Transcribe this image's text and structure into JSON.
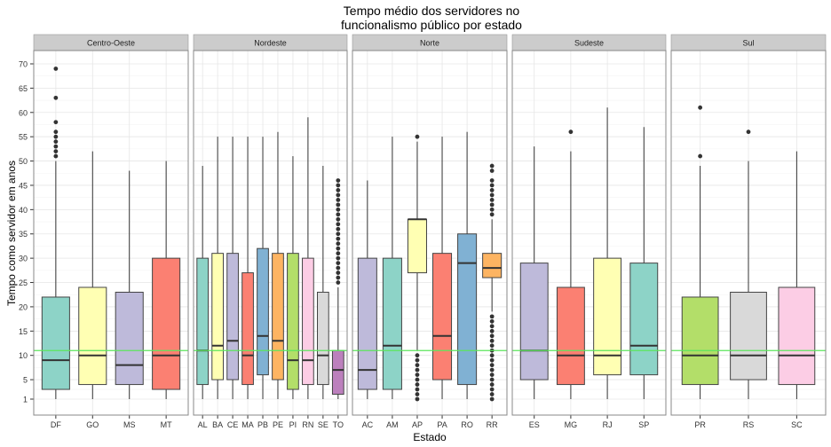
{
  "chart_data": {
    "type": "boxplot",
    "title": "Tempo médio dos servidores no\nfuncionalismo público por estado",
    "xlabel": "Estado",
    "ylabel": "Tempo como servidor em anos",
    "y_ticks": [
      1,
      5,
      10,
      15,
      20,
      25,
      30,
      35,
      40,
      45,
      50,
      55,
      60,
      65,
      70
    ],
    "ylim": [
      -1.5,
      72
    ],
    "grid": true,
    "reference_line": {
      "y": 11,
      "color": "#5ce65c"
    },
    "facets": [
      {
        "name": "Centro-Oeste",
        "boxes": [
          {
            "label": "DF",
            "color": "#8DD3C7",
            "min": 1,
            "q1": 3,
            "median": 9,
            "q3": 22,
            "max": 50,
            "outliers": [
              51,
              52,
              53,
              54,
              55,
              56,
              58,
              63,
              69
            ]
          },
          {
            "label": "GO",
            "color": "#FFFFB3",
            "min": 1,
            "q1": 4,
            "median": 10,
            "q3": 24,
            "max": 52,
            "outliers": []
          },
          {
            "label": "MS",
            "color": "#BEBADA",
            "min": 1,
            "q1": 4,
            "median": 8,
            "q3": 23,
            "max": 48,
            "outliers": []
          },
          {
            "label": "MT",
            "color": "#FB8072",
            "min": 1,
            "q1": 3,
            "median": 10,
            "q3": 30,
            "max": 50,
            "outliers": []
          }
        ]
      },
      {
        "name": "Nordeste",
        "boxes": [
          {
            "label": "AL",
            "color": "#8DD3C7",
            "min": 1,
            "q1": 4,
            "median": 11,
            "q3": 30,
            "max": 49,
            "outliers": []
          },
          {
            "label": "BA",
            "color": "#FFFFB3",
            "min": 1,
            "q1": 5,
            "median": 12,
            "q3": 31,
            "max": 55,
            "outliers": []
          },
          {
            "label": "CE",
            "color": "#BEBADA",
            "min": 1,
            "q1": 5,
            "median": 13,
            "q3": 31,
            "max": 55,
            "outliers": []
          },
          {
            "label": "MA",
            "color": "#FB8072",
            "min": 1,
            "q1": 4,
            "median": 10,
            "q3": 27,
            "max": 55,
            "outliers": []
          },
          {
            "label": "PB",
            "color": "#80B1D3",
            "min": 1,
            "q1": 6,
            "median": 14,
            "q3": 32,
            "max": 55,
            "outliers": []
          },
          {
            "label": "PE",
            "color": "#FDB462",
            "min": 1,
            "q1": 5,
            "median": 13,
            "q3": 31,
            "max": 56,
            "outliers": []
          },
          {
            "label": "PI",
            "color": "#B3DE69",
            "min": 1,
            "q1": 3,
            "median": 9,
            "q3": 31,
            "max": 51,
            "outliers": []
          },
          {
            "label": "RN",
            "color": "#FCCDE5",
            "min": 1,
            "q1": 4,
            "median": 9,
            "q3": 30,
            "max": 59,
            "outliers": []
          },
          {
            "label": "SE",
            "color": "#D9D9D9",
            "min": 1,
            "q1": 4,
            "median": 10,
            "q3": 23,
            "max": 49,
            "outliers": []
          },
          {
            "label": "TO",
            "color": "#BC80BD",
            "min": 1,
            "q1": 2,
            "median": 7,
            "q3": 11,
            "max": 24,
            "outliers": [
              25,
              26,
              27,
              28,
              29,
              30,
              31,
              32,
              33,
              34,
              35,
              36,
              37,
              38,
              39,
              40,
              41,
              42,
              43,
              44,
              45,
              46
            ]
          }
        ]
      },
      {
        "name": "Norte",
        "boxes": [
          {
            "label": "AC",
            "color": "#BEBADA",
            "min": 1,
            "q1": 3,
            "median": 7,
            "q3": 30,
            "max": 46,
            "outliers": []
          },
          {
            "label": "AM",
            "color": "#8DD3C7",
            "min": 1,
            "q1": 3,
            "median": 12,
            "q3": 30,
            "max": 55,
            "outliers": []
          },
          {
            "label": "AP",
            "color": "#FFFFB3",
            "min": 11,
            "q1": 27,
            "median": 38,
            "q3": 38,
            "max": 54,
            "outliers": [
              1,
              2,
              3,
              4,
              5,
              6,
              7,
              8,
              9,
              10,
              55
            ]
          },
          {
            "label": "PA",
            "color": "#FB8072",
            "min": 1,
            "q1": 5,
            "median": 14,
            "q3": 31,
            "max": 55,
            "outliers": []
          },
          {
            "label": "RO",
            "color": "#80B1D3",
            "min": 1,
            "q1": 4,
            "median": 29,
            "q3": 35,
            "max": 56,
            "outliers": []
          },
          {
            "label": "RR",
            "color": "#FDB462",
            "min": 19,
            "q1": 26,
            "median": 28,
            "q3": 31,
            "max": 38,
            "outliers": [
              1,
              2,
              3,
              4,
              5,
              6,
              7,
              8,
              9,
              10,
              11,
              12,
              13,
              14,
              15,
              16,
              17,
              18,
              39,
              40,
              41,
              42,
              43,
              44,
              45,
              46,
              48,
              49
            ]
          }
        ]
      },
      {
        "name": "Sudeste",
        "boxes": [
          {
            "label": "ES",
            "color": "#BEBADA",
            "min": 1,
            "q1": 5,
            "median": 11,
            "q3": 29,
            "max": 53,
            "outliers": []
          },
          {
            "label": "MG",
            "color": "#FB8072",
            "min": 1,
            "q1": 4,
            "median": 10,
            "q3": 24,
            "max": 52,
            "outliers": [
              56
            ]
          },
          {
            "label": "RJ",
            "color": "#FFFFB3",
            "min": 1,
            "q1": 6,
            "median": 10,
            "q3": 30,
            "max": 61,
            "outliers": []
          },
          {
            "label": "SP",
            "color": "#8DD3C7",
            "min": 1,
            "q1": 6,
            "median": 12,
            "q3": 29,
            "max": 57,
            "outliers": []
          }
        ]
      },
      {
        "name": "Sul",
        "boxes": [
          {
            "label": "PR",
            "color": "#B3DE69",
            "min": 1,
            "q1": 4,
            "median": 10,
            "q3": 22,
            "max": 49,
            "outliers": [
              51,
              61
            ]
          },
          {
            "label": "RS",
            "color": "#D9D9D9",
            "min": 1,
            "q1": 5,
            "median": 10,
            "q3": 23,
            "max": 50,
            "outliers": [
              56
            ]
          },
          {
            "label": "SC",
            "color": "#FCCDE5",
            "min": 1,
            "q1": 4,
            "median": 10,
            "q3": 24,
            "max": 52,
            "outliers": []
          }
        ]
      }
    ]
  }
}
